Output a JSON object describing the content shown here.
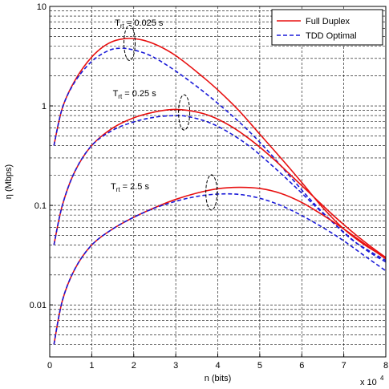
{
  "chart_data": {
    "type": "line",
    "xlabel": "n (bits)",
    "ylabel": "η (Mbps)",
    "x_multiplier_label": "x 10",
    "x_multiplier_exp": "4",
    "xlim": [
      0,
      8
    ],
    "ylim": [
      0.003,
      10
    ],
    "yscale": "log",
    "grid": true,
    "legend_position": "top-right",
    "x_ticks": [
      "0",
      "1",
      "2",
      "3",
      "4",
      "5",
      "6",
      "7",
      "8"
    ],
    "y_ticks": [
      {
        "value": 10,
        "label": "10"
      },
      {
        "value": 1,
        "label": "1"
      },
      {
        "value": 0.1,
        "label": "0.1"
      },
      {
        "value": 0.01,
        "label": "0.01"
      }
    ],
    "series": [
      {
        "name": "Full Duplex",
        "group": "Trt=0.025",
        "color": "#e81010",
        "dash": "solid",
        "x": [
          0.1,
          0.3,
          0.6,
          1.0,
          1.4,
          1.8,
          2.2,
          2.6,
          3.0,
          3.5,
          4.0,
          4.5,
          5.0,
          5.5,
          6.0,
          6.5,
          7.0,
          7.5,
          8.0
        ],
        "y": [
          0.4,
          0.95,
          1.8,
          3.1,
          4.25,
          4.75,
          4.6,
          4.0,
          3.2,
          2.2,
          1.45,
          0.9,
          0.52,
          0.3,
          0.17,
          0.095,
          0.058,
          0.04,
          0.03
        ]
      },
      {
        "name": "TDD Optimal",
        "group": "Trt=0.025",
        "color": "#1a1ad8",
        "dash": "dashed",
        "x": [
          0.1,
          0.3,
          0.6,
          1.0,
          1.4,
          1.7,
          2.0,
          2.4,
          2.8,
          3.2,
          3.7,
          4.2,
          4.7,
          5.2,
          5.7,
          6.2,
          6.7,
          7.2,
          7.6,
          8.0
        ],
        "y": [
          0.4,
          0.95,
          1.75,
          2.8,
          3.6,
          3.8,
          3.65,
          3.2,
          2.55,
          1.95,
          1.35,
          0.9,
          0.58,
          0.35,
          0.2,
          0.115,
          0.07,
          0.045,
          0.035,
          0.028
        ]
      },
      {
        "name": "Full Duplex",
        "group": "Trt=0.25",
        "color": "#e81010",
        "dash": "solid",
        "x": [
          0.1,
          0.3,
          0.6,
          1.0,
          1.5,
          2.0,
          2.5,
          2.9,
          3.3,
          3.8,
          4.3,
          4.8,
          5.3,
          5.8,
          6.3,
          6.8,
          7.3,
          7.7,
          8.0
        ],
        "y": [
          0.04,
          0.1,
          0.22,
          0.4,
          0.6,
          0.76,
          0.87,
          0.92,
          0.9,
          0.8,
          0.63,
          0.45,
          0.3,
          0.19,
          0.12,
          0.076,
          0.05,
          0.037,
          0.03
        ]
      },
      {
        "name": "TDD Optimal",
        "group": "Trt=0.25",
        "color": "#1a1ad8",
        "dash": "dashed",
        "x": [
          0.1,
          0.3,
          0.6,
          1.0,
          1.5,
          2.0,
          2.5,
          3.0,
          3.3,
          3.8,
          4.3,
          4.8,
          5.3,
          5.8,
          6.3,
          6.8,
          7.3,
          7.7,
          8.0
        ],
        "y": [
          0.04,
          0.1,
          0.22,
          0.4,
          0.57,
          0.69,
          0.77,
          0.8,
          0.78,
          0.68,
          0.53,
          0.38,
          0.25,
          0.16,
          0.1,
          0.064,
          0.042,
          0.032,
          0.027
        ]
      },
      {
        "name": "Full Duplex",
        "group": "Trt=2.5",
        "color": "#e81010",
        "dash": "solid",
        "x": [
          0.1,
          0.3,
          0.6,
          1.0,
          1.5,
          2.0,
          2.5,
          3.0,
          3.5,
          4.0,
          4.5,
          5.0,
          5.5,
          6.0,
          6.5,
          7.0,
          7.5,
          8.0
        ],
        "y": [
          0.004,
          0.011,
          0.023,
          0.04,
          0.058,
          0.076,
          0.095,
          0.115,
          0.133,
          0.147,
          0.152,
          0.148,
          0.132,
          0.107,
          0.08,
          0.058,
          0.041,
          0.029
        ]
      },
      {
        "name": "TDD Optimal",
        "group": "Trt=2.5",
        "color": "#1a1ad8",
        "dash": "dashed",
        "x": [
          0.1,
          0.3,
          0.6,
          1.0,
          1.5,
          2.0,
          2.5,
          3.0,
          3.5,
          4.0,
          4.5,
          5.0,
          5.5,
          6.0,
          6.5,
          7.0,
          7.5,
          8.0
        ],
        "y": [
          0.004,
          0.011,
          0.023,
          0.04,
          0.058,
          0.076,
          0.094,
          0.11,
          0.123,
          0.13,
          0.129,
          0.118,
          0.1,
          0.079,
          0.06,
          0.044,
          0.031,
          0.022
        ]
      }
    ],
    "annotations": [
      {
        "base": "T",
        "sub": "rt",
        "text": " = 0.025 s",
        "x": 1.55,
        "y": 6.4
      },
      {
        "base": "T",
        "sub": "rt",
        "text": " = 0.25 s",
        "x": 1.5,
        "y": 1.25
      },
      {
        "base": "T",
        "sub": "rt",
        "text": " = 2.5 s",
        "x": 1.45,
        "y": 0.145
      }
    ],
    "ellipses": [
      {
        "x": 1.9,
        "y": 4.3
      },
      {
        "x": 3.2,
        "y": 0.86
      },
      {
        "x": 3.85,
        "y": 0.135
      }
    ],
    "legend": [
      {
        "label": "Full Duplex",
        "color": "#e81010",
        "dash": "solid"
      },
      {
        "label": "TDD Optimal",
        "color": "#1a1ad8",
        "dash": "dashed"
      }
    ]
  }
}
